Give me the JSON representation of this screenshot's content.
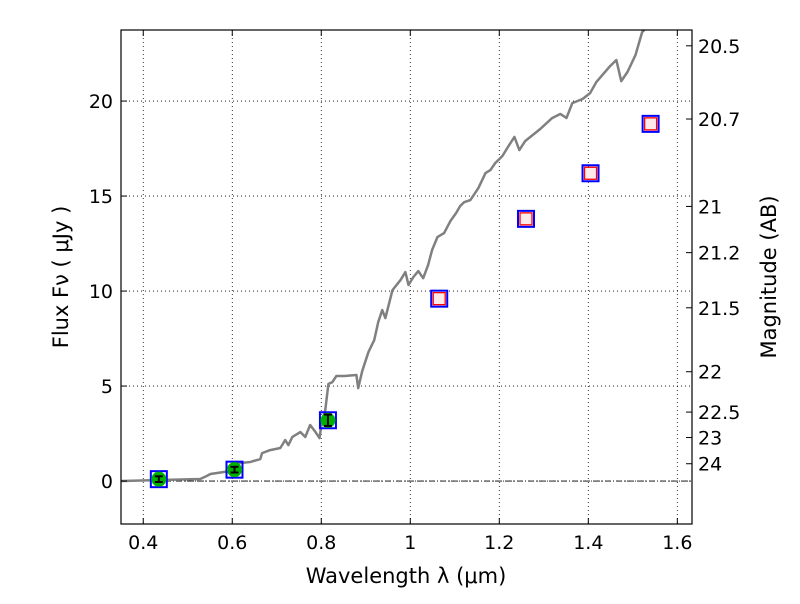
{
  "chart_data": {
    "type": "line",
    "title": "",
    "xlabel": "Wavelength  λ (μm)",
    "ylabel": "Flux  Fν  ( μJy )",
    "ylabel_right": "Magnitude (AB)",
    "xlim": [
      0.35,
      1.633
    ],
    "ylim": [
      -2.26,
      23.74
    ],
    "grid": true,
    "x_ticks": [
      0.4,
      0.6,
      0.8,
      1.0,
      1.2,
      1.4,
      1.6
    ],
    "x_tick_labels": [
      "0.4",
      "0.6",
      "0.8",
      "1",
      "1.2",
      "1.4",
      "1.6"
    ],
    "y_ticks": [
      0,
      5,
      10,
      15,
      20
    ],
    "y_tick_labels": [
      "0",
      "5",
      "10",
      "15",
      "20"
    ],
    "right_ticks_mag": [
      20.5,
      20.7,
      21,
      21.2,
      21.5,
      22,
      22.5,
      23,
      24
    ],
    "right_tick_labels": [
      "20.5",
      "20.7",
      "21",
      "21.2",
      "21.5",
      "22",
      "22.5",
      "23",
      "24"
    ],
    "mag_zeropoint": 23.9,
    "colors": {
      "spectrum": "#808080",
      "model_box": "#0000ff",
      "model_inner": "#ff0000",
      "observed": "#00b000"
    },
    "series": [
      {
        "name": "spectrum",
        "x": [
          0.351,
          0.528,
          0.542,
          0.551,
          0.596,
          0.602,
          0.618,
          0.64,
          0.663,
          0.667,
          0.685,
          0.708,
          0.719,
          0.726,
          0.735,
          0.753,
          0.764,
          0.775,
          0.787,
          0.796,
          0.802,
          0.809,
          0.816,
          0.825,
          0.834,
          0.852,
          0.879,
          0.883,
          0.892,
          0.906,
          0.919,
          0.928,
          0.937,
          0.944,
          0.96,
          0.978,
          0.989,
          0.996,
          1.007,
          1.018,
          1.029,
          1.04,
          1.049,
          1.061,
          1.076,
          1.09,
          1.103,
          1.112,
          1.121,
          1.135,
          1.153,
          1.169,
          1.18,
          1.191,
          1.207,
          1.222,
          1.234,
          1.245,
          1.258,
          1.292,
          1.319,
          1.337,
          1.351,
          1.364,
          1.387,
          1.404,
          1.418,
          1.449,
          1.463,
          1.474,
          1.488,
          1.506,
          1.521,
          1.526
        ],
        "y": [
          0,
          0.11,
          0.26,
          0.37,
          0.53,
          0.84,
          0.95,
          1.0,
          1.16,
          1.47,
          1.63,
          1.74,
          2.16,
          1.89,
          2.32,
          2.58,
          2.32,
          2.95,
          2.58,
          2.26,
          3.21,
          3.74,
          5.11,
          5.21,
          5.53,
          5.53,
          5.58,
          4.89,
          5.79,
          6.79,
          7.42,
          8.37,
          9.0,
          8.58,
          10.05,
          10.58,
          11.0,
          10.32,
          10.74,
          11.05,
          10.68,
          11.37,
          12.16,
          12.84,
          13.05,
          13.68,
          14.11,
          14.47,
          14.68,
          14.79,
          15.42,
          16.21,
          16.37,
          16.74,
          17.11,
          17.68,
          18.11,
          17.42,
          17.89,
          18.53,
          19.11,
          19.32,
          19.11,
          19.89,
          20.11,
          20.42,
          21.0,
          21.84,
          22.16,
          21.05,
          21.53,
          22.42,
          23.63,
          23.74
        ]
      },
      {
        "name": "model photometry",
        "x": [
          0.435,
          0.605,
          0.815,
          1.065,
          1.26,
          1.405,
          1.54
        ],
        "y": [
          0.1,
          0.6,
          3.2,
          9.6,
          13.8,
          16.2,
          18.8
        ]
      },
      {
        "name": "observed photometry",
        "x": [
          0.435,
          0.605,
          0.815
        ],
        "y": [
          0.1,
          0.6,
          3.2
        ],
        "yerr": [
          0.15,
          0.15,
          0.3
        ]
      }
    ]
  }
}
